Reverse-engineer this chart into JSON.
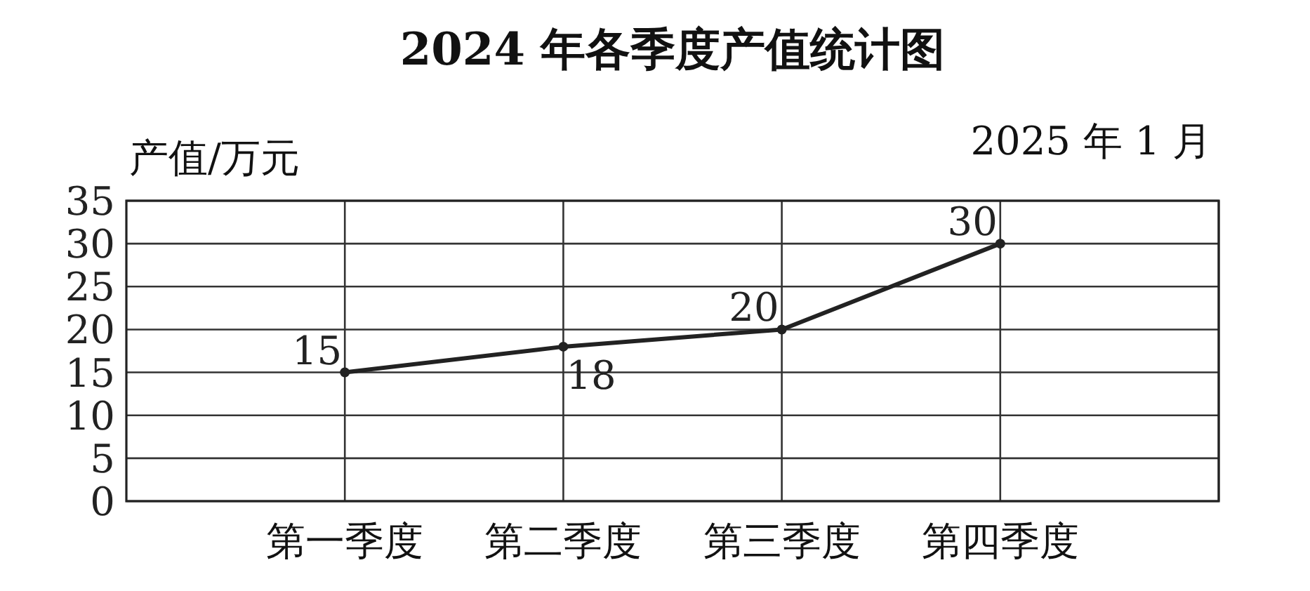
{
  "chart_data": {
    "type": "line",
    "title": "2024 年各季度产值统计图",
    "annotations": [
      "2025 年 1 月"
    ],
    "ylabel": "产值/万元",
    "categories": [
      "第一季度",
      "第二季度",
      "第三季度",
      "第四季度"
    ],
    "values": [
      15,
      18,
      20,
      30
    ],
    "color": "#222222",
    "ylim": [
      0,
      35
    ],
    "yticks": [
      0,
      5,
      10,
      15,
      20,
      25,
      30,
      35
    ],
    "grid": true,
    "data_labels": true,
    "marker": "circle"
  }
}
